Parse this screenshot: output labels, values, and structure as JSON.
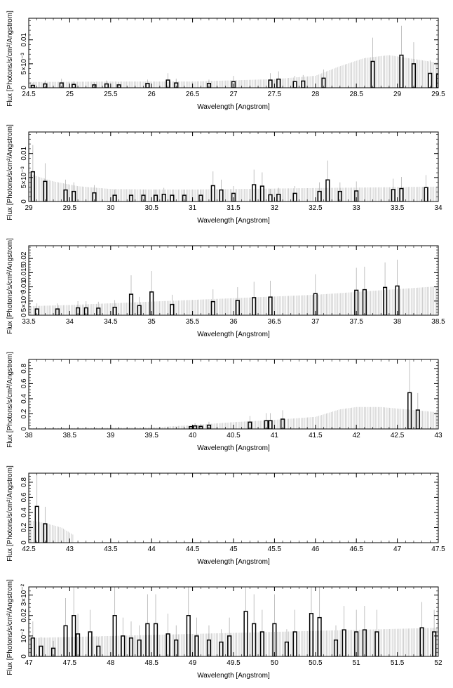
{
  "chart_data": [
    {
      "type": "bar",
      "xlabel": "Wavelength [Angstrom]",
      "ylabel": "Flux [Photons/s/cm²/Angstrom]",
      "xlim": [
        24.5,
        29.5
      ],
      "ylim": [
        0,
        0.0145
      ],
      "xticks": [
        "24.5",
        "25",
        "25.5",
        "26",
        "26.5",
        "27",
        "27.5",
        "28",
        "28.5",
        "29",
        "29.5"
      ],
      "yticks": [
        "0",
        "5×10⁻³",
        "0.01"
      ],
      "ytick_values": [
        0,
        0.005,
        0.01
      ],
      "x": [
        24.55,
        24.7,
        24.9,
        25.05,
        25.3,
        25.45,
        25.6,
        25.95,
        26.2,
        26.3,
        26.7,
        27.0,
        27.45,
        27.55,
        27.75,
        27.85,
        28.1,
        28.7,
        29.05,
        29.2,
        29.4,
        29.5
      ],
      "values": [
        0.0005,
        0.0008,
        0.001,
        0.0007,
        0.0006,
        0.0008,
        0.0006,
        0.0009,
        0.0016,
        0.001,
        0.0009,
        0.0013,
        0.0016,
        0.0018,
        0.0013,
        0.0014,
        0.002,
        0.0055,
        0.0068,
        0.005,
        0.003,
        0.0028
      ],
      "error_band": {
        "x": [
          24.5,
          25.5,
          26.5,
          27.5,
          28.0,
          28.3,
          28.6,
          28.9,
          29.2,
          29.5
        ],
        "values": [
          0.0012,
          0.0013,
          0.0013,
          0.0018,
          0.0025,
          0.0045,
          0.0062,
          0.0068,
          0.006,
          0.0052
        ]
      }
    },
    {
      "type": "bar",
      "xlabel": "Wavelength [Angstrom]",
      "ylabel": "Flux [Photons/s/cm²/Angstrom]",
      "xlim": [
        29,
        34
      ],
      "ylim": [
        0,
        0.0145
      ],
      "xticks": [
        "29",
        "29.5",
        "30",
        "30.5",
        "31",
        "31.5",
        "32",
        "32.5",
        "33",
        "33.5",
        "34"
      ],
      "yticks": [
        "0",
        "5×10⁻³",
        "0.01"
      ],
      "ytick_values": [
        0,
        0.005,
        0.01
      ],
      "x": [
        29.05,
        29.2,
        29.45,
        29.55,
        29.8,
        30.05,
        30.25,
        30.4,
        30.55,
        30.65,
        30.75,
        30.9,
        31.1,
        31.25,
        31.35,
        31.5,
        31.75,
        31.85,
        31.95,
        32.05,
        32.25,
        32.55,
        32.65,
        32.8,
        33.0,
        33.45,
        33.55,
        33.85
      ],
      "values": [
        0.0062,
        0.0042,
        0.0024,
        0.0021,
        0.0018,
        0.0013,
        0.0013,
        0.0013,
        0.0013,
        0.0015,
        0.0013,
        0.0013,
        0.0013,
        0.0033,
        0.0024,
        0.0017,
        0.0035,
        0.0032,
        0.0014,
        0.0015,
        0.0017,
        0.0021,
        0.0045,
        0.0021,
        0.0022,
        0.0025,
        0.0027,
        0.0029
      ],
      "error_band": {
        "x": [
          29.0,
          29.3,
          29.6,
          30.0,
          30.5,
          31.0,
          31.5,
          32.0,
          32.5,
          33.0,
          33.5,
          34.0
        ],
        "values": [
          0.0058,
          0.0042,
          0.0032,
          0.0026,
          0.0025,
          0.0025,
          0.0026,
          0.0027,
          0.0028,
          0.0029,
          0.003,
          0.0031
        ]
      }
    },
    {
      "type": "bar",
      "xlabel": "Wavelength [Angstrom]",
      "ylabel": "Flux [Photons/s/cm²/Angstrom]",
      "xlim": [
        33.5,
        38.5
      ],
      "ylim": [
        0,
        0.0245
      ],
      "xticks": [
        "33.5",
        "34",
        "34.5",
        "35",
        "35.5",
        "36",
        "36.5",
        "37",
        "37.5",
        "38",
        "38.5"
      ],
      "yticks": [
        "0",
        "5×10⁻³",
        "0.01",
        "0.015",
        "0.02"
      ],
      "ytick_values": [
        0,
        0.005,
        0.01,
        0.015,
        0.02
      ],
      "x": [
        33.6,
        33.85,
        34.1,
        34.2,
        34.35,
        34.55,
        34.75,
        34.85,
        35.0,
        35.25,
        35.75,
        36.05,
        36.25,
        36.45,
        37.0,
        37.5,
        37.6,
        37.85,
        38.0
      ],
      "values": [
        0.0022,
        0.0022,
        0.0026,
        0.0026,
        0.0025,
        0.0028,
        0.0074,
        0.0034,
        0.0082,
        0.0038,
        0.0048,
        0.0052,
        0.0062,
        0.0064,
        0.0076,
        0.0088,
        0.009,
        0.0098,
        0.0103
      ],
      "error_band": {
        "x": [
          33.5,
          34.0,
          34.5,
          35.0,
          35.5,
          36.0,
          36.5,
          37.0,
          37.5,
          38.0,
          38.5
        ],
        "values": [
          0.0032,
          0.0036,
          0.0042,
          0.0048,
          0.0054,
          0.006,
          0.0066,
          0.0072,
          0.0082,
          0.0092,
          0.0102
        ]
      }
    },
    {
      "type": "bar",
      "xlabel": "Wavelength [Angstrom]",
      "ylabel": "Flux [Photons/s/cm²/Angstrom]",
      "xlim": [
        38,
        43
      ],
      "ylim": [
        0,
        0.92
      ],
      "xticks": [
        "38",
        "38.5",
        "39",
        "39.5",
        "40",
        "40.5",
        "41",
        "41.5",
        "42",
        "42.5",
        "43"
      ],
      "yticks": [
        "0",
        "0.2",
        "0.4",
        "0.6",
        "0.8"
      ],
      "ytick_values": [
        0,
        0.2,
        0.4,
        0.6,
        0.8
      ],
      "x": [
        39.98,
        40.03,
        40.1,
        40.2,
        40.7,
        40.9,
        40.95,
        41.1,
        42.65,
        42.75
      ],
      "values": [
        0.03,
        0.04,
        0.035,
        0.05,
        0.09,
        0.11,
        0.11,
        0.13,
        0.48,
        0.25
      ],
      "error_band": {
        "x": [
          38.0,
          39.5,
          40.0,
          40.5,
          41.0,
          41.5,
          41.8,
          42.0,
          42.3,
          42.6,
          43.0
        ],
        "values": [
          0.01,
          0.02,
          0.05,
          0.09,
          0.12,
          0.16,
          0.26,
          0.29,
          0.29,
          0.26,
          0.22
        ]
      }
    },
    {
      "type": "bar",
      "xlabel": "Wavelength [Angstrom]",
      "ylabel": "Flux [Photons/s/cm²/Angstrom]",
      "xlim": [
        42.5,
        47.5
      ],
      "ylim": [
        0,
        0.92
      ],
      "xticks": [
        "42.5",
        "43",
        "43.5",
        "44",
        "44.5",
        "45",
        "45.5",
        "46",
        "46.5",
        "47",
        "47.5"
      ],
      "yticks": [
        "0",
        "0.2",
        "0.4",
        "0.6",
        "0.8"
      ],
      "ytick_values": [
        0,
        0.2,
        0.4,
        0.6,
        0.8
      ],
      "x": [
        42.6,
        42.7
      ],
      "values": [
        0.48,
        0.25
      ],
      "error_band": {
        "x": [
          42.5,
          42.7,
          42.9,
          43.05
        ],
        "values": [
          0.3,
          0.26,
          0.2,
          0.1
        ]
      }
    },
    {
      "type": "bar",
      "xlabel": "Wavelength [Angstrom]",
      "ylabel": "Flux [Photons/s/cm²/Angstrom]",
      "xlim": [
        47,
        52
      ],
      "ylim": [
        0,
        0.034
      ],
      "xticks": [
        "47",
        "47.5",
        "48",
        "48.5",
        "49",
        "49.5",
        "50",
        "50.5",
        "51",
        "51.5",
        "52"
      ],
      "yticks": [
        "0",
        "10⁻²",
        "0.02",
        "3×10⁻²"
      ],
      "ytick_values": [
        0,
        0.01,
        0.02,
        0.03
      ],
      "x": [
        47.05,
        47.15,
        47.3,
        47.45,
        47.55,
        47.6,
        47.75,
        47.85,
        48.05,
        48.15,
        48.25,
        48.35,
        48.45,
        48.55,
        48.7,
        48.8,
        48.95,
        49.05,
        49.2,
        49.35,
        49.45,
        49.65,
        49.75,
        49.85,
        50.0,
        50.15,
        50.25,
        50.45,
        50.55,
        50.75,
        50.85,
        51.0,
        51.1,
        51.25,
        51.8,
        51.95
      ],
      "values": [
        0.009,
        0.005,
        0.004,
        0.015,
        0.02,
        0.011,
        0.012,
        0.005,
        0.02,
        0.01,
        0.009,
        0.008,
        0.016,
        0.016,
        0.011,
        0.008,
        0.02,
        0.01,
        0.008,
        0.007,
        0.01,
        0.022,
        0.016,
        0.012,
        0.016,
        0.007,
        0.012,
        0.021,
        0.019,
        0.008,
        0.013,
        0.012,
        0.013,
        0.012,
        0.014,
        0.012
      ],
      "error_band": {
        "x": [
          47.0,
          48.0,
          49.0,
          50.0,
          51.0,
          52.0
        ],
        "values": [
          0.009,
          0.01,
          0.011,
          0.012,
          0.013,
          0.014
        ]
      }
    }
  ]
}
